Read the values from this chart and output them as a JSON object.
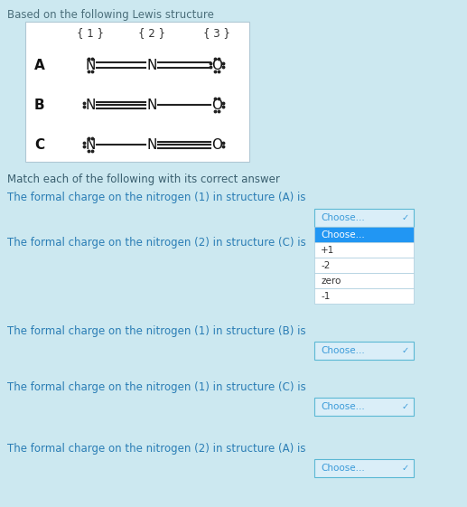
{
  "bg_color": "#cce8f0",
  "white_box_color": "#ffffff",
  "header_text": "Based on the following Lewis structure",
  "header_color": "#4a6e7a",
  "match_text": "Match each of the following with its correct answer",
  "match_color": "#3a5f6f",
  "lewis_labels": [
    "{ 1 }",
    "{ 2 }",
    "{ 3 }"
  ],
  "label_color": "#333333",
  "questions": [
    "The formal charge on the nitrogen (1) in structure (A) is",
    "The formal charge on the nitrogen (2) in structure (C) is",
    "The formal charge on the nitrogen (1) in structure (B) is",
    "The formal charge on the nitrogen (1) in structure (C) is",
    "The formal charge on the nitrogen (2) in structure (A) is"
  ],
  "q_color": "#2a7db5",
  "dropdown_label": "Choose...",
  "dropdown_options": [
    "Choose...",
    "+1",
    "-2",
    "zero",
    "-1"
  ],
  "dropdown_bg": "#daeef8",
  "dropdown_border": "#5bb8d4",
  "dropdown_text": "#3a9ad9",
  "open_highlight": "#2196f3",
  "open_text": "#ffffff",
  "opt_bg": "#ffffff",
  "opt_text": "#333333",
  "opt_border": "#aaccdd",
  "bond_color": "#222222",
  "dot_color": "#222222",
  "atom_color": "#111111",
  "struct_label_color": "#111111"
}
